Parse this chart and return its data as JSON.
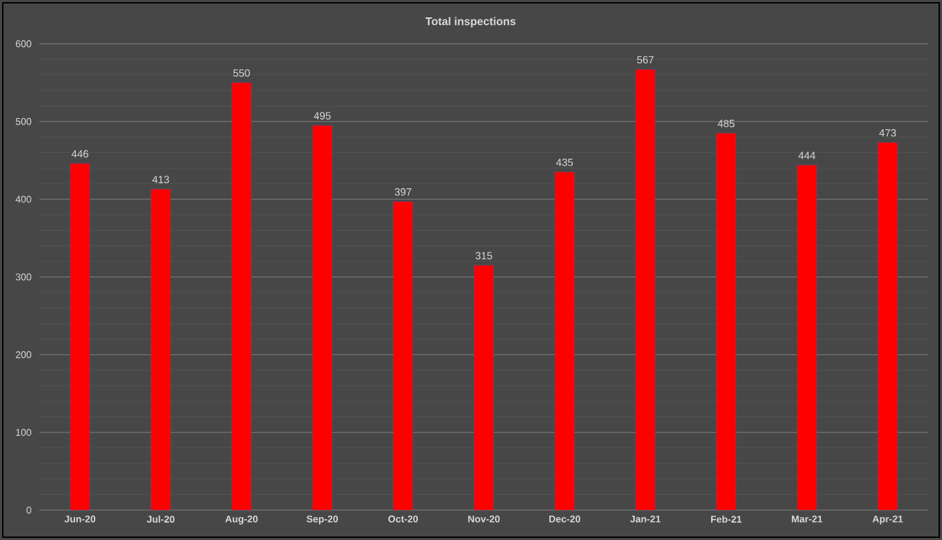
{
  "chart_data": {
    "type": "bar",
    "title": "Total inspections",
    "categories": [
      "Jun-20",
      "Jul-20",
      "Aug-20",
      "Sep-20",
      "Oct-20",
      "Nov-20",
      "Dec-20",
      "Jan-21",
      "Feb-21",
      "Mar-21",
      "Apr-21"
    ],
    "values": [
      446,
      413,
      550,
      495,
      397,
      315,
      435,
      567,
      485,
      444,
      473
    ],
    "color": "#ff0000",
    "ylim": [
      0,
      600
    ],
    "yticks": [
      0,
      100,
      200,
      300,
      400,
      500,
      600
    ],
    "grid": "y",
    "data_labels": true
  }
}
